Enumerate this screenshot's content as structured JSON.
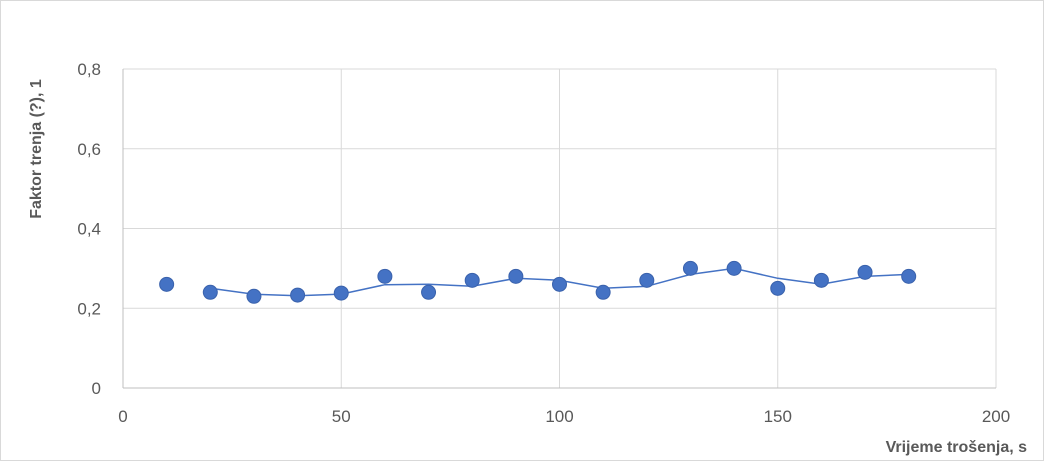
{
  "chart_data": {
    "type": "scatter",
    "title": "",
    "xlabel": "Vrijeme trošenja, s",
    "ylabel": "Faktor trenja (?), 1",
    "xlim": [
      0,
      200
    ],
    "ylim": [
      0,
      0.8
    ],
    "x_ticks": [
      {
        "value": 0,
        "label": "0"
      },
      {
        "value": 50,
        "label": "50"
      },
      {
        "value": 100,
        "label": "100"
      },
      {
        "value": 150,
        "label": "150"
      },
      {
        "value": 200,
        "label": "200"
      }
    ],
    "y_ticks": [
      {
        "value": 0,
        "label": "0"
      },
      {
        "value": 0.2,
        "label": "0,2"
      },
      {
        "value": 0.4,
        "label": "0,4"
      },
      {
        "value": 0.6,
        "label": "0,6"
      },
      {
        "value": 0.8,
        "label": "0,8"
      }
    ],
    "grid": true,
    "legend": "none",
    "series": [
      {
        "x": [
          10,
          20,
          30,
          40,
          50,
          60,
          70,
          80,
          90,
          100,
          110,
          120,
          130,
          140,
          150,
          160,
          170,
          180
        ],
        "y": [
          0.26,
          0.24,
          0.23,
          0.233,
          0.238,
          0.28,
          0.24,
          0.27,
          0.28,
          0.26,
          0.24,
          0.27,
          0.3,
          0.3,
          0.25,
          0.27,
          0.29,
          0.28
        ],
        "color": "#4472c4"
      }
    ],
    "trendline": {
      "type": "moving-average",
      "period": 2,
      "color": "#4472c4"
    }
  }
}
